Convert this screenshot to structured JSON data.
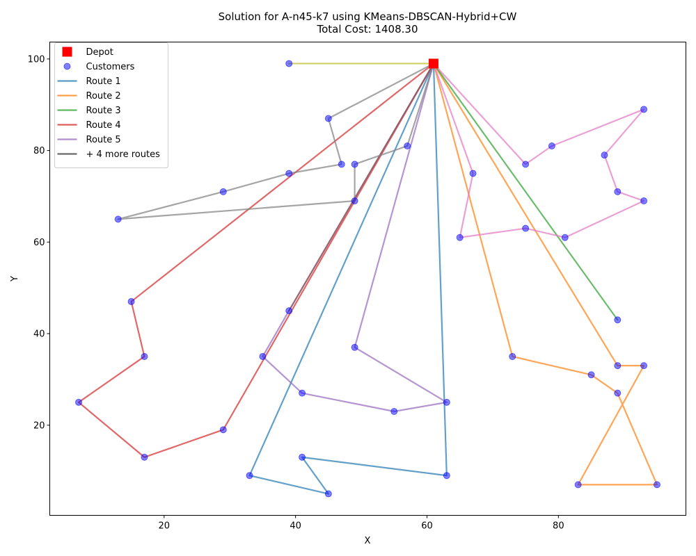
{
  "chart_data": {
    "type": "scatter",
    "title_line1": "Solution for A-n45-k7 using KMeans-DBSCAN-Hybrid+CW",
    "title_line2": "Total Cost: 1408.30",
    "xlabel": "X",
    "ylabel": "Y",
    "xlim": [
      2.6,
      99.4
    ],
    "ylim": [
      0.3,
      103.7
    ],
    "x_ticks": [
      20,
      40,
      60,
      80
    ],
    "y_ticks": [
      20,
      40,
      60,
      80,
      100
    ],
    "grid": false,
    "legend_position": "upper-left",
    "depot": {
      "x": 61,
      "y": 99,
      "color": "#ff0000"
    },
    "customers": {
      "color": "#0000ff",
      "points": [
        [
          39,
          99
        ],
        [
          93,
          89
        ],
        [
          45,
          87
        ],
        [
          79,
          81
        ],
        [
          57,
          81
        ],
        [
          87,
          79
        ],
        [
          47,
          77
        ],
        [
          49,
          77
        ],
        [
          75,
          77
        ],
        [
          39,
          75
        ],
        [
          67,
          75
        ],
        [
          29,
          71
        ],
        [
          89,
          71
        ],
        [
          49,
          69
        ],
        [
          93,
          69
        ],
        [
          13,
          65
        ],
        [
          75,
          63
        ],
        [
          65,
          61
        ],
        [
          81,
          61
        ],
        [
          15,
          47
        ],
        [
          39,
          45
        ],
        [
          89,
          43
        ],
        [
          49,
          37
        ],
        [
          17,
          35
        ],
        [
          35,
          35
        ],
        [
          73,
          35
        ],
        [
          89,
          33
        ],
        [
          93,
          33
        ],
        [
          85,
          31
        ],
        [
          41,
          27
        ],
        [
          89,
          27
        ],
        [
          7,
          25
        ],
        [
          63,
          25
        ],
        [
          55,
          23
        ],
        [
          29,
          19
        ],
        [
          17,
          13
        ],
        [
          41,
          13
        ],
        [
          33,
          9
        ],
        [
          63,
          9
        ],
        [
          45,
          5
        ],
        [
          83,
          7
        ],
        [
          95,
          7
        ]
      ]
    },
    "routes": [
      {
        "name": "Route 1",
        "color": "#1f77b4",
        "in_legend": true,
        "points": [
          [
            61,
            99
          ],
          [
            33,
            9
          ],
          [
            45,
            5
          ],
          [
            41,
            13
          ],
          [
            63,
            9
          ],
          [
            61,
            99
          ]
        ]
      },
      {
        "name": "Route 2",
        "color": "#ff7f0e",
        "in_legend": true,
        "points": [
          [
            61,
            99
          ],
          [
            73,
            35
          ],
          [
            85,
            31
          ],
          [
            89,
            27
          ],
          [
            95,
            7
          ],
          [
            83,
            7
          ],
          [
            93,
            33
          ],
          [
            89,
            33
          ],
          [
            61,
            99
          ]
        ]
      },
      {
        "name": "Route 3",
        "color": "#2ca02c",
        "in_legend": true,
        "points": [
          [
            61,
            99
          ],
          [
            89,
            43
          ],
          [
            61,
            99
          ]
        ]
      },
      {
        "name": "Route 4",
        "color": "#d62728",
        "in_legend": true,
        "points": [
          [
            61,
            99
          ],
          [
            15,
            47
          ],
          [
            17,
            35
          ],
          [
            7,
            25
          ],
          [
            17,
            13
          ],
          [
            29,
            19
          ],
          [
            61,
            99
          ]
        ]
      },
      {
        "name": "Route 5",
        "color": "#9467bd",
        "in_legend": true,
        "points": [
          [
            61,
            99
          ],
          [
            39,
            45
          ],
          [
            35,
            35
          ],
          [
            41,
            27
          ],
          [
            55,
            23
          ],
          [
            63,
            25
          ],
          [
            49,
            37
          ],
          [
            61,
            99
          ]
        ]
      },
      {
        "name": "Route 6",
        "color": "#8c564b",
        "in_legend": false,
        "points": [
          [
            61,
            99
          ],
          [
            39,
            45
          ],
          [
            61,
            99
          ]
        ]
      },
      {
        "name": "Route 7",
        "color": "#e377c2",
        "in_legend": false,
        "points": [
          [
            61,
            99
          ],
          [
            75,
            77
          ],
          [
            79,
            81
          ],
          [
            93,
            89
          ],
          [
            87,
            79
          ],
          [
            89,
            71
          ],
          [
            93,
            69
          ],
          [
            81,
            61
          ],
          [
            75,
            63
          ],
          [
            65,
            61
          ],
          [
            67,
            75
          ],
          [
            61,
            99
          ]
        ]
      },
      {
        "name": "Route 8",
        "color": "#7f7f7f",
        "in_legend": false,
        "points": [
          [
            61,
            99
          ],
          [
            45,
            87
          ],
          [
            47,
            77
          ],
          [
            39,
            75
          ],
          [
            29,
            71
          ],
          [
            13,
            65
          ],
          [
            49,
            69
          ],
          [
            49,
            77
          ],
          [
            57,
            81
          ],
          [
            61,
            99
          ]
        ]
      },
      {
        "name": "Route 9",
        "color": "#bcbd22",
        "in_legend": false,
        "points": [
          [
            61,
            99
          ],
          [
            39,
            99
          ],
          [
            61,
            99
          ]
        ]
      }
    ],
    "legend": [
      {
        "label": "Depot",
        "kind": "square",
        "color": "#ff0000"
      },
      {
        "label": "Customers",
        "kind": "circle",
        "color": "#0000ff"
      },
      {
        "label": "Route 1",
        "kind": "line",
        "color": "#1f77b4"
      },
      {
        "label": "Route 2",
        "kind": "line",
        "color": "#ff7f0e"
      },
      {
        "label": "Route 3",
        "kind": "line",
        "color": "#2ca02c"
      },
      {
        "label": "Route 4",
        "kind": "line",
        "color": "#d62728"
      },
      {
        "label": "Route 5",
        "kind": "line",
        "color": "#9467bd"
      },
      {
        "label": "+ 4 more routes",
        "kind": "line",
        "color": "#444444"
      }
    ]
  }
}
